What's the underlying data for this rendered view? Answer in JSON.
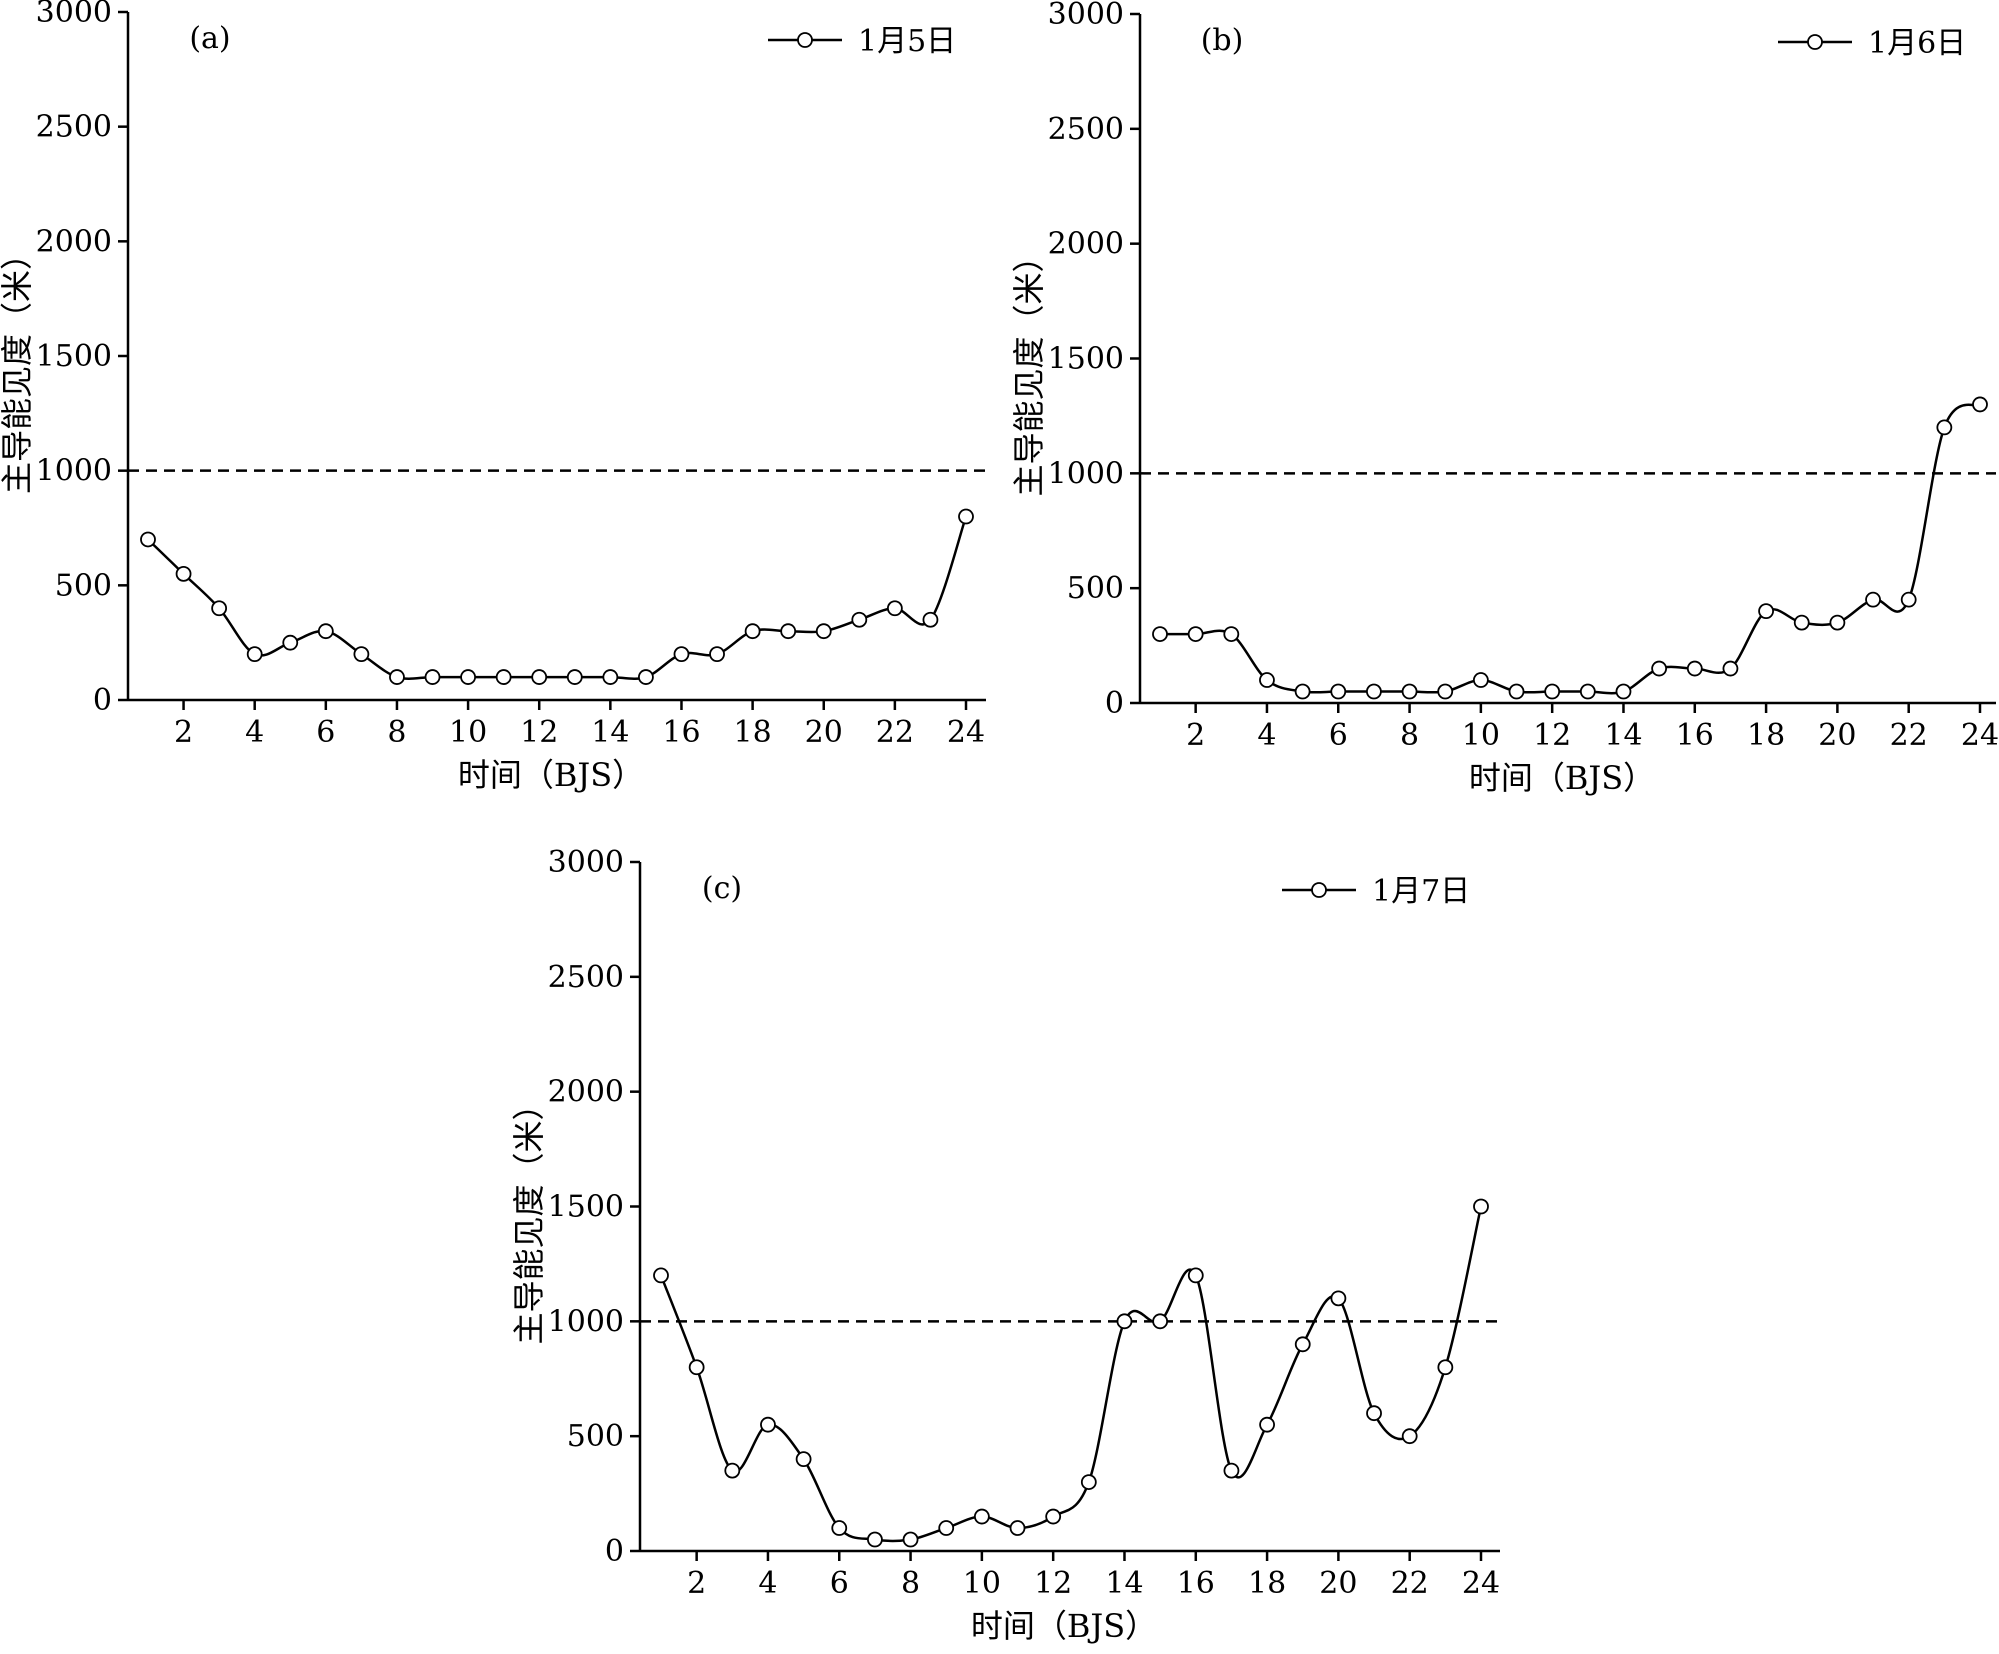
{
  "chart_data": [
    {
      "type": "line",
      "panel_label": "(a)",
      "xlabel": "时间（BJS）",
      "ylabel": "主导能见度（米）",
      "xlim": [
        0.5,
        24.5
      ],
      "ylim": [
        0,
        3000
      ],
      "xticks": [
        2,
        4,
        6,
        8,
        10,
        12,
        14,
        16,
        18,
        20,
        22,
        24
      ],
      "yticks": [
        0,
        500,
        1000,
        1500,
        2000,
        2500,
        3000
      ],
      "threshold": 1000,
      "legend_position": "top-right",
      "series": [
        {
          "name": "1月5日",
          "x": [
            1,
            2,
            3,
            4,
            5,
            6,
            7,
            8,
            9,
            10,
            11,
            12,
            13,
            14,
            15,
            16,
            17,
            18,
            19,
            20,
            21,
            22,
            23,
            24
          ],
          "values": [
            700,
            550,
            400,
            200,
            250,
            300,
            200,
            100,
            100,
            100,
            100,
            100,
            100,
            100,
            100,
            200,
            200,
            300,
            300,
            300,
            350,
            400,
            350,
            800
          ]
        }
      ]
    },
    {
      "type": "line",
      "panel_label": "(b)",
      "xlabel": "时间（BJS）",
      "ylabel": "主导能见度（米）",
      "xlim": [
        0.5,
        24.5
      ],
      "ylim": [
        0,
        3000
      ],
      "xticks": [
        2,
        4,
        6,
        8,
        10,
        12,
        14,
        16,
        18,
        20,
        22,
        24
      ],
      "yticks": [
        0,
        500,
        1000,
        1500,
        2000,
        2500,
        3000
      ],
      "threshold": 1000,
      "legend_position": "top-right",
      "series": [
        {
          "name": "1月6日",
          "x": [
            1,
            2,
            3,
            4,
            5,
            6,
            7,
            8,
            9,
            10,
            11,
            12,
            13,
            14,
            15,
            16,
            17,
            18,
            19,
            20,
            21,
            22,
            23,
            24
          ],
          "values": [
            300,
            300,
            300,
            100,
            50,
            50,
            50,
            50,
            50,
            100,
            50,
            50,
            50,
            50,
            150,
            150,
            150,
            400,
            350,
            350,
            450,
            450,
            1200,
            1300
          ]
        }
      ]
    },
    {
      "type": "line",
      "panel_label": "(c)",
      "xlabel": "时间（BJS）",
      "ylabel": "主导能见度（米）",
      "xlim": [
        0.5,
        24.5
      ],
      "ylim": [
        0,
        3000
      ],
      "xticks": [
        2,
        4,
        6,
        8,
        10,
        12,
        14,
        16,
        18,
        20,
        22,
        24
      ],
      "yticks": [
        0,
        500,
        1000,
        1500,
        2000,
        2500,
        3000
      ],
      "threshold": 1000,
      "legend_position": "top-right",
      "series": [
        {
          "name": "1月7日",
          "x": [
            1,
            2,
            3,
            4,
            5,
            6,
            7,
            8,
            9,
            10,
            11,
            12,
            13,
            14,
            15,
            16,
            17,
            18,
            19,
            20,
            21,
            22,
            23,
            24
          ],
          "values": [
            1200,
            800,
            350,
            550,
            400,
            100,
            50,
            50,
            100,
            150,
            100,
            150,
            300,
            1000,
            1000,
            1200,
            350,
            550,
            900,
            1100,
            600,
            500,
            800,
            1500
          ]
        }
      ]
    }
  ]
}
